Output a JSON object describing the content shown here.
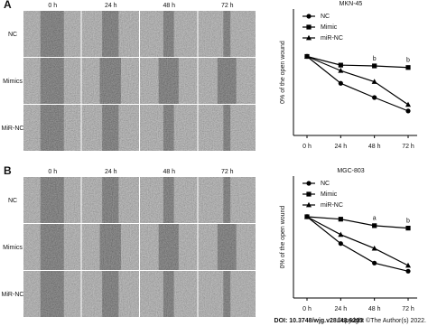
{
  "panels": [
    {
      "label": "A",
      "columns": [
        "0 h",
        "24 h",
        "48 h",
        "72 h"
      ],
      "rows": [
        "NC",
        "Mimics",
        "MiR-NC"
      ]
    },
    {
      "label": "B",
      "columns": [
        "0 h",
        "24 h",
        "48 h",
        "72 h"
      ],
      "rows": [
        "NC",
        "Mimics",
        "MiR-NC"
      ]
    }
  ],
  "chart_data": [
    {
      "type": "line",
      "title": "MKN-45",
      "y_label": "0% of the open wound",
      "categories": [
        "0 h",
        "24 h",
        "48 h",
        "72 h"
      ],
      "ylim": [
        0,
        160
      ],
      "series": [
        {
          "name": "NC",
          "color": "#000000",
          "marker": "circle",
          "values": [
            100,
            66,
            48,
            31
          ]
        },
        {
          "name": "Mimic",
          "color": "#000000",
          "marker": "square",
          "values": [
            100,
            89,
            88,
            86
          ]
        },
        {
          "name": "miR-NC",
          "color": "#000000",
          "marker": "triangle",
          "values": [
            100,
            82,
            68,
            39
          ]
        }
      ],
      "annotations": [
        {
          "text": "b",
          "category": "48 h"
        },
        {
          "text": "b",
          "category": "72 h"
        }
      ],
      "legend": "top-left"
    },
    {
      "type": "line",
      "title": "MGC-803",
      "y_label": "0% of the open wound",
      "categories": [
        "0 h",
        "24 h",
        "48 h",
        "72 h"
      ],
      "ylim": [
        0,
        150
      ],
      "series": [
        {
          "name": "NC",
          "color": "#000000",
          "marker": "circle",
          "values": [
            100,
            67,
            43,
            33
          ]
        },
        {
          "name": "Mimic",
          "color": "#000000",
          "marker": "square",
          "values": [
            100,
            97,
            89,
            86
          ]
        },
        {
          "name": "miR-NC",
          "color": "#000000",
          "marker": "triangle",
          "values": [
            100,
            78,
            61,
            40
          ]
        }
      ],
      "annotations": [
        {
          "text": "a",
          "category": "48 h"
        },
        {
          "text": "b",
          "category": "72 h"
        }
      ],
      "legend": "top-left"
    }
  ],
  "footer": {
    "doi": "DOI: 10.3748/wjg.v28.i43.6203",
    "copyright": "Copyright ©The Author(s) 2022."
  }
}
